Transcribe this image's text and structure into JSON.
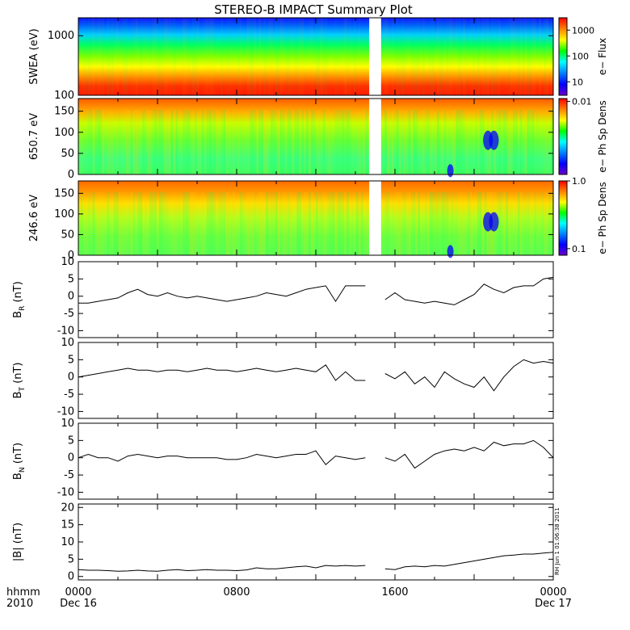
{
  "title": "STEREO-B IMPACT Summary Plot",
  "colors": {
    "axis": "#000000",
    "line": "#000000",
    "background": "#ffffff"
  },
  "colormap": [
    "#6a00c8",
    "#0000ff",
    "#0080ff",
    "#00ffff",
    "#00ff00",
    "#ffff00",
    "#ff8000",
    "#ff0000"
  ],
  "time_axis": {
    "label_top": "hhmm",
    "label_bottom": "2010",
    "ticks": [
      {
        "hour": 0,
        "label": "0000",
        "sub": "Dec 16"
      },
      {
        "hour": 8,
        "label": "0800",
        "sub": ""
      },
      {
        "hour": 16,
        "label": "1600",
        "sub": ""
      },
      {
        "hour": 24,
        "label": "0000",
        "sub": "Dec 17"
      }
    ]
  },
  "timestamp_note": "RH Jun 1 01:06:38 2011",
  "chart_data": [
    {
      "type": "heatmap",
      "name": "swea",
      "ylabel": "SWEA (eV)",
      "yscale": "log",
      "ylim": [
        100,
        2000
      ],
      "yticks": [
        "100",
        "1000"
      ],
      "ytick_values": [
        100,
        1000
      ],
      "colorbar": {
        "label": "e− Flux",
        "scale": "log",
        "range": [
          3,
          3000
        ],
        "ticks": [
          "10",
          "100",
          "1000"
        ],
        "tick_values": [
          10,
          100,
          1000
        ]
      },
      "data_gap_hours": [
        14.7,
        15.3
      ],
      "description_values": {
        "low_energy_level": "red",
        "high_energy_level": "blue"
      }
    },
    {
      "type": "heatmap",
      "name": "pad650",
      "ylabel": "650.7 eV",
      "ylim": [
        0,
        180
      ],
      "yticks": [
        "0",
        "50",
        "100",
        "150"
      ],
      "ytick_values": [
        0,
        50,
        100,
        150
      ],
      "colorbar": {
        "label": "e− Ph Sp Dens",
        "scale": "log",
        "range": [
          0.0001,
          0.012
        ],
        "ticks": [
          "0.01"
        ],
        "tick_values": [
          0.01
        ]
      },
      "data_gap_hours": [
        14.7,
        15.3
      ]
    },
    {
      "type": "heatmap",
      "name": "pad246",
      "ylabel": "246.6 eV",
      "ylim": [
        0,
        180
      ],
      "yticks": [
        "0",
        "50",
        "100",
        "150"
      ],
      "ytick_values": [
        0,
        50,
        100,
        150
      ],
      "colorbar": {
        "label": "e− Ph Sp Dens",
        "scale": "log",
        "range": [
          0.08,
          1.0
        ],
        "ticks": [
          "0.1",
          "1.0"
        ],
        "tick_values": [
          0.1,
          1.0
        ]
      },
      "data_gap_hours": [
        14.7,
        15.3
      ]
    },
    {
      "type": "line",
      "name": "br",
      "ylabel_main": "B",
      "ylabel_sub": "R",
      "ylabel_unit": " (nT)",
      "ylim": [
        -12,
        10
      ],
      "yticks": [
        "-10",
        "-5",
        "0",
        "5",
        "10"
      ],
      "ytick_values": [
        -10,
        -5,
        0,
        5,
        10
      ],
      "x": [
        0,
        0.5,
        1,
        1.5,
        2,
        2.5,
        3,
        3.5,
        4,
        4.5,
        5,
        5.5,
        6,
        6.5,
        7,
        7.5,
        8,
        8.5,
        9,
        9.5,
        10,
        10.5,
        11,
        11.5,
        12,
        12.5,
        13,
        13.5,
        14,
        14.5,
        null,
        15.5,
        16,
        16.5,
        17,
        17.5,
        18,
        18.5,
        19,
        19.5,
        20,
        20.5,
        21,
        21.5,
        22,
        22.5,
        23,
        23.5,
        24
      ],
      "y": [
        -2,
        -2,
        -1.5,
        -1,
        -0.5,
        1,
        2,
        0.5,
        0,
        1,
        0,
        -0.5,
        0,
        -0.5,
        -1,
        -1.5,
        -1,
        -0.5,
        0,
        1,
        0.5,
        0,
        1,
        2,
        2.5,
        3,
        -1.5,
        3,
        3,
        3,
        null,
        -1,
        1,
        -1,
        -1.5,
        -2,
        -1.5,
        -2,
        -2.5,
        -1,
        0.5,
        3.5,
        2,
        1,
        2.5,
        3,
        3,
        5,
        5.5
      ]
    },
    {
      "type": "line",
      "name": "bt",
      "ylabel_main": "B",
      "ylabel_sub": "T",
      "ylabel_unit": " (nT)",
      "ylim": [
        -12,
        10
      ],
      "yticks": [
        "-10",
        "-5",
        "0",
        "5",
        "10"
      ],
      "ytick_values": [
        -10,
        -5,
        0,
        5,
        10
      ],
      "x": [
        0,
        0.5,
        1,
        1.5,
        2,
        2.5,
        3,
        3.5,
        4,
        4.5,
        5,
        5.5,
        6,
        6.5,
        7,
        7.5,
        8,
        8.5,
        9,
        9.5,
        10,
        10.5,
        11,
        11.5,
        12,
        12.5,
        13,
        13.5,
        14,
        14.5,
        null,
        15.5,
        16,
        16.5,
        17,
        17.5,
        18,
        18.5,
        19,
        19.5,
        20,
        20.5,
        21,
        21.5,
        22,
        22.5,
        23,
        23.5,
        24
      ],
      "y": [
        0,
        0.5,
        1,
        1.5,
        2,
        2.5,
        2,
        2,
        1.5,
        2,
        2,
        1.5,
        2,
        2.5,
        2,
        2,
        1.5,
        2,
        2.5,
        2,
        1.5,
        2,
        2.5,
        2,
        1.5,
        3.5,
        -1,
        1.5,
        -1,
        -1,
        null,
        1,
        -0.5,
        1.5,
        -2,
        0,
        -3,
        1.5,
        -0.5,
        -2,
        -3,
        0,
        -4,
        0,
        3,
        5,
        4,
        4.5,
        4
      ]
    },
    {
      "type": "line",
      "name": "bn",
      "ylabel_main": "B",
      "ylabel_sub": "N",
      "ylabel_unit": " (nT)",
      "ylim": [
        -12,
        10
      ],
      "yticks": [
        "-10",
        "-5",
        "0",
        "5",
        "10"
      ],
      "ytick_values": [
        -10,
        -5,
        0,
        5,
        10
      ],
      "x": [
        0,
        0.5,
        1,
        1.5,
        2,
        2.5,
        3,
        3.5,
        4,
        4.5,
        5,
        5.5,
        6,
        6.5,
        7,
        7.5,
        8,
        8.5,
        9,
        9.5,
        10,
        10.5,
        11,
        11.5,
        12,
        12.5,
        13,
        13.5,
        14,
        14.5,
        null,
        15.5,
        16,
        16.5,
        17,
        17.5,
        18,
        18.5,
        19,
        19.5,
        20,
        20.5,
        21,
        21.5,
        22,
        22.5,
        23,
        23.5,
        24
      ],
      "y": [
        0,
        1,
        0,
        0,
        -1,
        0.5,
        1,
        0.5,
        0,
        0.5,
        0.5,
        0,
        0,
        0,
        0,
        -0.5,
        -0.5,
        0,
        1,
        0.5,
        0,
        0.5,
        1,
        1,
        2,
        -2,
        0.5,
        0,
        -0.5,
        0,
        null,
        0,
        -1,
        1,
        -3,
        -1,
        1,
        2,
        2.5,
        2,
        3,
        2,
        4.5,
        3.5,
        4,
        4,
        5,
        3,
        0
      ]
    },
    {
      "type": "line",
      "name": "bmag",
      "ylabel_main": "|B|",
      "ylabel_sub": "",
      "ylabel_unit": " (nT)",
      "ylim": [
        -1,
        21
      ],
      "yticks": [
        "0",
        "5",
        "10",
        "15",
        "20"
      ],
      "ytick_values": [
        0,
        5,
        10,
        15,
        20
      ],
      "x": [
        0,
        0.5,
        1,
        1.5,
        2,
        2.5,
        3,
        3.5,
        4,
        4.5,
        5,
        5.5,
        6,
        6.5,
        7,
        7.5,
        8,
        8.5,
        9,
        9.5,
        10,
        10.5,
        11,
        11.5,
        12,
        12.5,
        13,
        13.5,
        14,
        14.5,
        null,
        15.5,
        16,
        16.5,
        17,
        17.5,
        18,
        18.5,
        19,
        19.5,
        20,
        20.5,
        21,
        21.5,
        22,
        22.5,
        23,
        23.5,
        24
      ],
      "y": [
        2,
        1.8,
        1.8,
        1.7,
        1.5,
        1.6,
        1.8,
        1.6,
        1.5,
        1.8,
        2,
        1.7,
        1.8,
        2,
        1.8,
        1.8,
        1.7,
        1.9,
        2.5,
        2.2,
        2.2,
        2.5,
        2.8,
        3,
        2.5,
        3.2,
        3,
        3.2,
        3,
        3.2,
        null,
        2.2,
        2,
        2.8,
        3,
        2.8,
        3.2,
        3,
        3.5,
        4,
        4.5,
        5,
        5.5,
        6,
        6.2,
        6.5,
        6.5,
        6.8,
        7
      ]
    }
  ]
}
